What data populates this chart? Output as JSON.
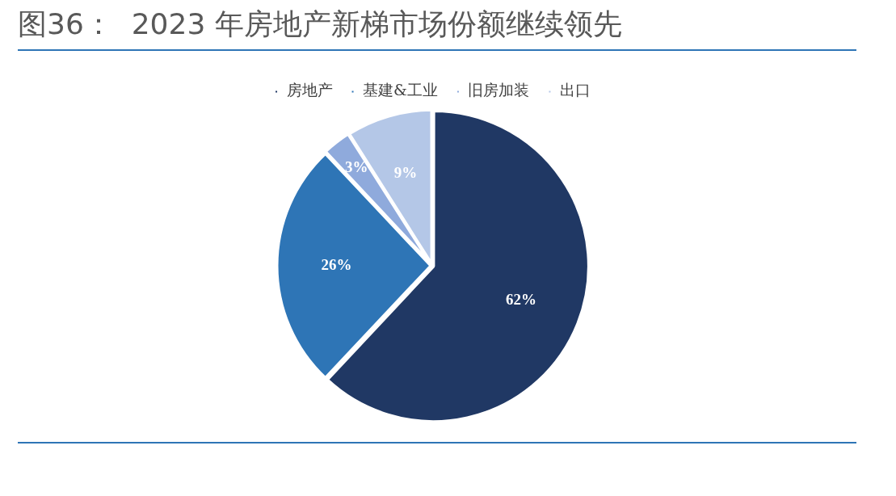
{
  "chart_data": {
    "type": "pie",
    "title": "图36：  2023 年房地产新梯市场份额继续领先",
    "categories": [
      "房地产",
      "基建&工业",
      "旧房加装",
      "出口"
    ],
    "values": [
      62,
      26,
      3,
      9
    ],
    "colors": [
      "#203864",
      "#2e75b6",
      "#8faadc",
      "#b4c7e7"
    ],
    "value_labels": [
      "62%",
      "26%",
      "3%",
      "9%"
    ],
    "legend": "top"
  }
}
